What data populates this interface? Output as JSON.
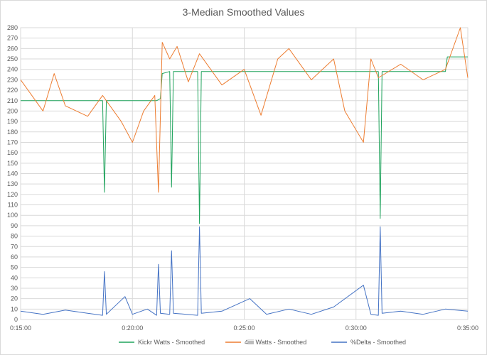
{
  "chart_data": {
    "type": "line",
    "title": "3-Median Smoothed Values",
    "xlabel": "",
    "ylabel": "",
    "x_range": [
      "0:15:00",
      "0:35:00"
    ],
    "x_ticks": [
      "0:15:00",
      "0:20:00",
      "0:25:00",
      "0:30:00",
      "0:35:00"
    ],
    "ylim": [
      0,
      280
    ],
    "y_ticks": [
      0,
      10,
      20,
      30,
      40,
      50,
      60,
      70,
      80,
      90,
      100,
      110,
      120,
      130,
      140,
      150,
      160,
      170,
      180,
      190,
      200,
      210,
      220,
      230,
      240,
      250,
      260,
      270,
      280
    ],
    "grid": true,
    "legend_position": "bottom",
    "series": [
      {
        "name": "Kickr Watts - Smoothed",
        "color": "#1fa35c",
        "points": [
          [
            "0:15:00",
            210
          ],
          [
            "0:18:40",
            210
          ],
          [
            "0:18:45",
            122
          ],
          [
            "0:18:50",
            210
          ],
          [
            "0:21:05",
            210
          ],
          [
            "0:21:15",
            212
          ],
          [
            "0:21:20",
            236
          ],
          [
            "0:21:40",
            238
          ],
          [
            "0:21:45",
            127
          ],
          [
            "0:21:50",
            238
          ],
          [
            "0:22:55",
            238
          ],
          [
            "0:23:00",
            92
          ],
          [
            "0:23:05",
            238
          ],
          [
            "0:31:00",
            238
          ],
          [
            "0:31:05",
            97
          ],
          [
            "0:31:10",
            238
          ],
          [
            "0:34:00",
            238
          ],
          [
            "0:34:05",
            252
          ],
          [
            "0:35:00",
            252
          ]
        ]
      },
      {
        "name": "4iiii Watts - Smoothed",
        "color": "#ed7d31",
        "points": [
          [
            "0:15:00",
            230
          ],
          [
            "0:16:00",
            200
          ],
          [
            "0:16:30",
            236
          ],
          [
            "0:17:00",
            205
          ],
          [
            "0:18:00",
            195
          ],
          [
            "0:18:40",
            215
          ],
          [
            "0:19:30",
            190
          ],
          [
            "0:20:00",
            170
          ],
          [
            "0:20:30",
            200
          ],
          [
            "0:21:00",
            215
          ],
          [
            "0:21:10",
            122
          ],
          [
            "0:21:20",
            266
          ],
          [
            "0:21:40",
            250
          ],
          [
            "0:22:00",
            262
          ],
          [
            "0:22:30",
            228
          ],
          [
            "0:23:00",
            255
          ],
          [
            "0:24:00",
            225
          ],
          [
            "0:25:00",
            240
          ],
          [
            "0:25:45",
            196
          ],
          [
            "0:26:30",
            250
          ],
          [
            "0:27:00",
            260
          ],
          [
            "0:28:00",
            230
          ],
          [
            "0:29:00",
            250
          ],
          [
            "0:29:30",
            200
          ],
          [
            "0:30:20",
            170
          ],
          [
            "0:30:40",
            250
          ],
          [
            "0:31:00",
            232
          ],
          [
            "0:32:00",
            245
          ],
          [
            "0:33:00",
            230
          ],
          [
            "0:34:00",
            240
          ],
          [
            "0:34:40",
            280
          ],
          [
            "0:35:00",
            232
          ]
        ]
      },
      {
        "name": "%Delta - Smoothed",
        "color": "#4472c4",
        "points": [
          [
            "0:15:00",
            8
          ],
          [
            "0:16:00",
            5
          ],
          [
            "0:17:00",
            9
          ],
          [
            "0:18:00",
            6
          ],
          [
            "0:18:40",
            4
          ],
          [
            "0:18:45",
            46
          ],
          [
            "0:18:50",
            5
          ],
          [
            "0:19:40",
            22
          ],
          [
            "0:20:00",
            5
          ],
          [
            "0:20:40",
            10
          ],
          [
            "0:21:05",
            4
          ],
          [
            "0:21:10",
            53
          ],
          [
            "0:21:15",
            6
          ],
          [
            "0:21:40",
            5
          ],
          [
            "0:21:45",
            66
          ],
          [
            "0:21:50",
            6
          ],
          [
            "0:22:55",
            4
          ],
          [
            "0:23:00",
            89
          ],
          [
            "0:23:05",
            6
          ],
          [
            "0:24:00",
            8
          ],
          [
            "0:25:15",
            20
          ],
          [
            "0:26:00",
            5
          ],
          [
            "0:27:00",
            10
          ],
          [
            "0:28:00",
            5
          ],
          [
            "0:29:00",
            12
          ],
          [
            "0:30:20",
            33
          ],
          [
            "0:30:40",
            5
          ],
          [
            "0:31:00",
            4
          ],
          [
            "0:31:05",
            89
          ],
          [
            "0:31:10",
            6
          ],
          [
            "0:32:00",
            8
          ],
          [
            "0:33:00",
            5
          ],
          [
            "0:34:00",
            10
          ],
          [
            "0:35:00",
            8
          ]
        ]
      }
    ]
  }
}
